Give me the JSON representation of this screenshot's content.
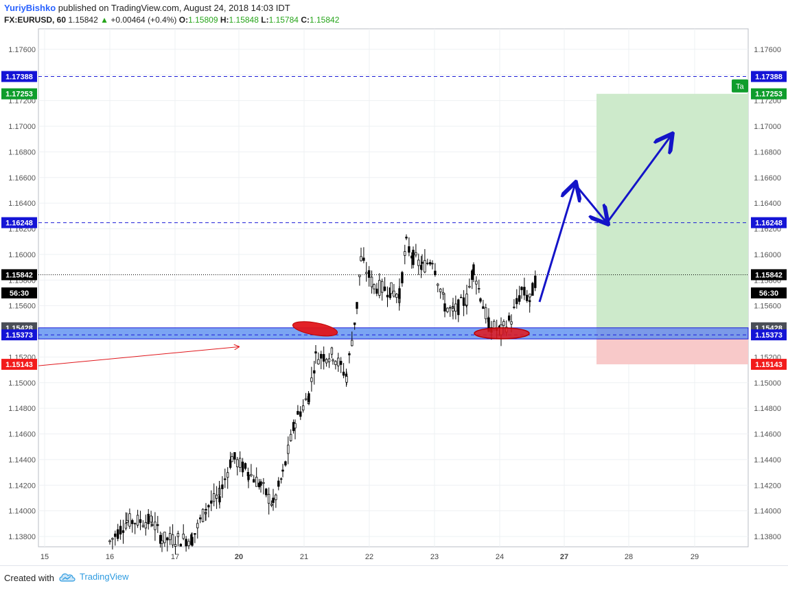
{
  "header": {
    "author": "YuriyBishko",
    "published": "published on TradingView.com, August 24, 2018 14:03 IDT",
    "symbol": "FX:EURUSD, 60",
    "last": "1.15842",
    "change": "+0.00464 (+0.4%)",
    "o_label": "O:",
    "o": "1.15809",
    "h_label": "H:",
    "h": "1.15848",
    "l_label": "L:",
    "l": "1.15784",
    "c_label": "C:",
    "c": "1.15842"
  },
  "footer": {
    "created": "Created with",
    "brand": "TradingView",
    "brand_icon": "tradingview-cloud-icon"
  },
  "colors": {
    "up": "#000000",
    "down": "#000000",
    "grid": "#eef0f3",
    "level_line": "#1a1ad6",
    "target_zone": "#cdeacb",
    "stop_zone": "#f8c9c9",
    "support_band": "#5b8ef0",
    "arrow": "#1414c8",
    "annotation_red": "#e0161b",
    "green_label": "#0f9d2c",
    "red_label": "#f21b1b",
    "blue_label": "#1414d6"
  },
  "chart_data": {
    "type": "candlestick",
    "title": "",
    "ylim": [
      1.1372,
      1.1776
    ],
    "y_ticks": [
      "1.17600",
      "1.17400",
      "1.17200",
      "1.17000",
      "1.16800",
      "1.16600",
      "1.16400",
      "1.16200",
      "1.16000",
      "1.15800",
      "1.15600",
      "1.15400",
      "1.15200",
      "1.15000",
      "1.14800",
      "1.14600",
      "1.14400",
      "1.14200",
      "1.14000",
      "1.13800"
    ],
    "x_ticks": [
      "15",
      "16",
      "17",
      "20",
      "21",
      "22",
      "23",
      "24",
      "27",
      "28",
      "29"
    ],
    "x_ticks_bold": [
      "20",
      "27"
    ],
    "price_labels": [
      {
        "text": "1.17388",
        "value": 1.17388,
        "color": "blue"
      },
      {
        "text": "1.17253",
        "value": 1.17253,
        "color": "green"
      },
      {
        "text": "1.16248",
        "value": 1.16248,
        "color": "blue"
      },
      {
        "text": "1.15842",
        "value": 1.15842,
        "color": "black"
      },
      {
        "text": "56:30",
        "value": 1.157,
        "color": "black"
      },
      {
        "text": "1.15428",
        "value": 1.15428,
        "color": "gray"
      },
      {
        "text": "1.15373",
        "value": 1.15373,
        "color": "blue"
      },
      {
        "text": "1.15143",
        "value": 1.15143,
        "color": "red"
      }
    ],
    "levels": {
      "resistance_top": 1.17388,
      "target": 1.17253,
      "resistance_mid": 1.16248,
      "last_price": 1.15842,
      "support_top": 1.15428,
      "support_bottom": 1.15373,
      "stop": 1.15143
    },
    "position_tool": {
      "entry": 1.15428,
      "target": 1.17253,
      "stop": 1.15143,
      "target_label": "Ta"
    },
    "anchors": [
      {
        "date": "15",
        "value": 1.138
      },
      {
        "date": "16",
        "value": 1.138
      },
      {
        "date": "17",
        "value": 1.1378
      },
      {
        "date": "20",
        "value": 1.1444
      },
      {
        "date": "21",
        "value": 1.152
      },
      {
        "date": "22",
        "value": 1.1572
      },
      {
        "date": "23",
        "value": 1.1608
      },
      {
        "date": "24",
        "value": 1.1542
      },
      {
        "date": "24",
        "value": 1.15842
      }
    ]
  }
}
